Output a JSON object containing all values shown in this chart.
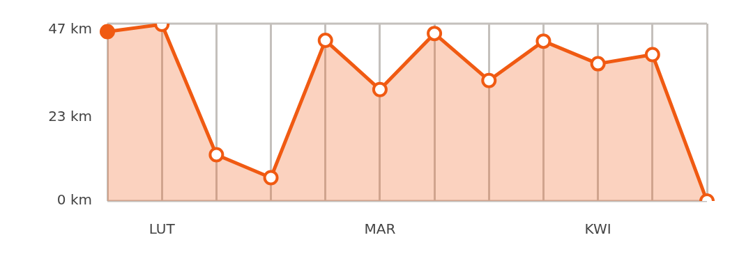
{
  "chart_data": {
    "type": "area",
    "categories": [
      null,
      "LUT",
      null,
      null,
      null,
      "MAR",
      null,
      null,
      null,
      "KWI",
      null,
      null
    ],
    "series": [
      {
        "color": "#f05a12",
        "values": [
          46.5,
          48.5,
          12.7,
          6.4,
          44.1,
          30.6,
          46,
          33.1,
          43.9,
          37.7,
          40.2,
          0
        ]
      }
    ],
    "ylim": [
      0,
      48.7
    ],
    "yticks": [
      {
        "value": 0,
        "label": "0 km"
      },
      {
        "value": 23,
        "label": "23 km"
      },
      {
        "value": 47,
        "label": "47 km"
      }
    ],
    "grid": "x",
    "legend": false,
    "marker": "circle",
    "line_style": "solid"
  }
}
